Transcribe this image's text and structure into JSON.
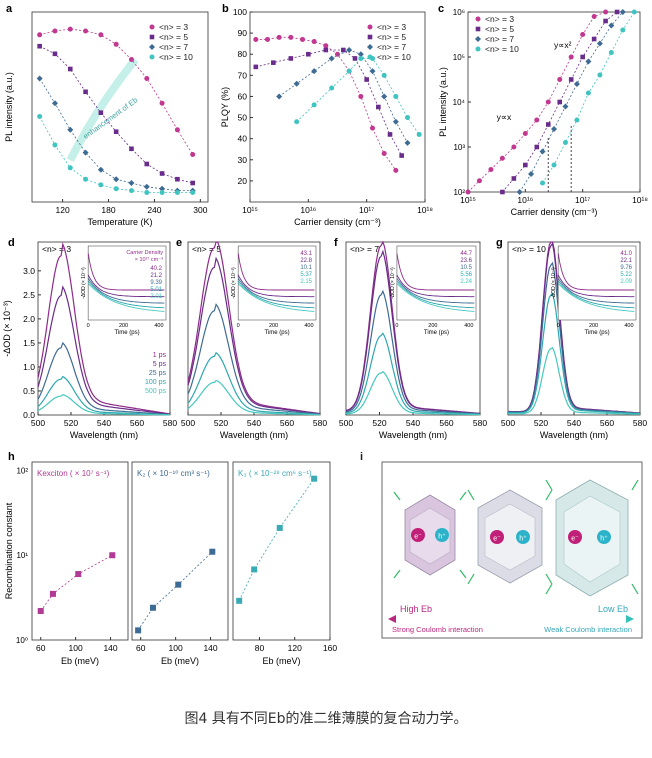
{
  "figure": {
    "caption": "图4 具有不同Eb的准二维薄膜的复合动力学。",
    "colors": {
      "n3": "#c2378f",
      "n5": "#6a2c8a",
      "n7": "#3e6b93",
      "n10": "#3fc4c0"
    }
  },
  "chart_data": [
    {
      "id": "a",
      "panel_label": "a",
      "type": "scatter",
      "xlabel": "Temperature (K)",
      "ylabel": "PL intensity (a.u.)",
      "xlim": [
        80,
        310
      ],
      "ylim": [
        0,
        1
      ],
      "xticks": [
        "120",
        "180",
        "240",
        "300"
      ],
      "legend": [
        "<n> = 3",
        "<n> = 5",
        "<n> = 7",
        "<n> = 10"
      ],
      "annotation": "enhancement of Eb",
      "series": [
        {
          "name": "<n> = 3",
          "x": [
            90,
            110,
            130,
            150,
            170,
            190,
            210,
            230,
            250,
            270,
            290
          ],
          "values": [
            0.88,
            0.9,
            0.91,
            0.9,
            0.88,
            0.83,
            0.75,
            0.65,
            0.52,
            0.38,
            0.25
          ]
        },
        {
          "name": "<n> = 5",
          "x": [
            90,
            110,
            130,
            150,
            170,
            190,
            210,
            230,
            250,
            270,
            290
          ],
          "values": [
            0.82,
            0.78,
            0.7,
            0.58,
            0.47,
            0.37,
            0.28,
            0.2,
            0.15,
            0.12,
            0.1
          ]
        },
        {
          "name": "<n> = 7",
          "x": [
            90,
            110,
            130,
            150,
            170,
            190,
            210,
            230,
            250,
            270,
            290
          ],
          "values": [
            0.65,
            0.52,
            0.38,
            0.26,
            0.17,
            0.12,
            0.1,
            0.08,
            0.07,
            0.06,
            0.06
          ]
        },
        {
          "name": "<n> = 10",
          "x": [
            90,
            110,
            130,
            150,
            170,
            190,
            210,
            230,
            250,
            270,
            290
          ],
          "values": [
            0.45,
            0.3,
            0.18,
            0.12,
            0.09,
            0.07,
            0.06,
            0.05,
            0.05,
            0.05,
            0.05
          ]
        }
      ]
    },
    {
      "id": "b",
      "panel_label": "b",
      "type": "scatter",
      "xlabel": "Carrier density (cm⁻³)",
      "ylabel": "PLQY (%)",
      "xlim": [
        15,
        18
      ],
      "ylim": [
        10,
        100
      ],
      "xticks": [
        "10¹⁵",
        "10¹⁶",
        "10¹⁷",
        "10¹⁸"
      ],
      "yticks": [
        "20",
        "30",
        "40",
        "50",
        "60",
        "70",
        "80",
        "90",
        "100"
      ],
      "legend": [
        "<n> = 3",
        "<n> = 5",
        "<n> = 7",
        "<n> = 10"
      ],
      "series": [
        {
          "name": "<n> = 3",
          "x": [
            15.1,
            15.3,
            15.5,
            15.7,
            15.9,
            16.1,
            16.3,
            16.5,
            16.7,
            16.9,
            17.1,
            17.3,
            17.5
          ],
          "values": [
            87,
            87,
            88,
            88,
            87,
            86,
            84,
            80,
            72,
            60,
            45,
            33,
            25
          ]
        },
        {
          "name": "<n> = 5",
          "x": [
            15.1,
            15.4,
            15.7,
            16.0,
            16.3,
            16.6,
            16.8,
            17.0,
            17.2,
            17.4,
            17.6
          ],
          "values": [
            74,
            76,
            78,
            80,
            82,
            82,
            78,
            68,
            55,
            42,
            32
          ]
        },
        {
          "name": "<n> = 7",
          "x": [
            15.5,
            15.8,
            16.1,
            16.4,
            16.7,
            16.9,
            17.1,
            17.3,
            17.5,
            17.7
          ],
          "values": [
            60,
            66,
            72,
            78,
            82,
            80,
            72,
            60,
            48,
            38
          ]
        },
        {
          "name": "<n> = 10",
          "x": [
            15.8,
            16.1,
            16.4,
            16.7,
            16.9,
            17.1,
            17.3,
            17.5,
            17.7,
            17.9
          ],
          "values": [
            48,
            56,
            64,
            72,
            78,
            78,
            70,
            60,
            50,
            42
          ]
        }
      ]
    },
    {
      "id": "c",
      "panel_label": "c",
      "type": "scatter",
      "xlabel": "Carrier density (cm⁻³)",
      "ylabel": "PL intensity (a.u.)",
      "xlim": [
        15,
        18
      ],
      "ylim": [
        2,
        6
      ],
      "xticks": [
        "10¹⁵",
        "10¹⁶",
        "10¹⁷",
        "10¹⁸"
      ],
      "yticks": [
        "10²",
        "10³",
        "10⁴",
        "10⁵",
        "10⁶"
      ],
      "legend": [
        "<n> = 3",
        "<n> = 5",
        "<n> = 7",
        "<n> = 10"
      ],
      "annotations": [
        "y∝x",
        "y∝x²"
      ],
      "series": [
        {
          "name": "<n> = 3",
          "x": [
            15.0,
            15.2,
            15.4,
            15.6,
            15.8,
            16.0,
            16.2,
            16.4,
            16.6,
            16.8,
            17.0,
            17.2,
            17.4
          ],
          "values": [
            2.0,
            2.25,
            2.5,
            2.75,
            3.0,
            3.3,
            3.6,
            4.0,
            4.5,
            5.0,
            5.5,
            5.9,
            6.0
          ]
        },
        {
          "name": "<n> = 5",
          "x": [
            15.6,
            15.8,
            16.0,
            16.2,
            16.4,
            16.6,
            16.8,
            17.0,
            17.2,
            17.4,
            17.6
          ],
          "values": [
            2.0,
            2.3,
            2.6,
            3.0,
            3.5,
            4.0,
            4.5,
            5.0,
            5.4,
            5.8,
            6.0
          ]
        },
        {
          "name": "<n> = 7",
          "x": [
            15.9,
            16.1,
            16.3,
            16.5,
            16.7,
            16.9,
            17.1,
            17.3,
            17.5,
            17.7
          ],
          "values": [
            2.0,
            2.4,
            2.9,
            3.4,
            3.9,
            4.4,
            4.9,
            5.3,
            5.7,
            6.0
          ]
        },
        {
          "name": "<n> = 10",
          "x": [
            16.3,
            16.5,
            16.7,
            16.9,
            17.1,
            17.3,
            17.5,
            17.7,
            17.9
          ],
          "values": [
            2.2,
            2.6,
            3.1,
            3.6,
            4.2,
            4.6,
            5.1,
            5.6,
            6.0
          ]
        }
      ]
    },
    {
      "id": "d",
      "panel_label": "d",
      "type": "line",
      "n_label": "<n> = 3",
      "xlabel": "Wavelength (nm)",
      "ylabel": "-ΔOD (× 10⁻³)",
      "xlim": [
        500,
        580
      ],
      "ylim": [
        0,
        3.6
      ],
      "xticks": [
        "500",
        "520",
        "540",
        "560",
        "580"
      ],
      "yticks": [
        "0.0",
        "0.5",
        "1.0",
        "1.5",
        "2.0",
        "2.5",
        "3.0"
      ],
      "peak_nm": 514,
      "width_nm": 11,
      "tail": 0.12,
      "amplitudes": [
        3.2,
        2.4,
        1.35,
        0.72,
        0.38
      ],
      "delays": [
        "1 ps",
        "5 ps",
        "25 ps",
        "100 ps",
        "500 ps"
      ],
      "inset": {
        "title": "Carrier Density",
        "unit": "× 10¹⁷ cm⁻³",
        "densities": [
          "40.2",
          "21.2",
          "9.39",
          "5.01",
          "2.01"
        ],
        "xlabel": "Time (ps)",
        "ylabel": "-ΔOD (× 10⁻³)",
        "xticks": [
          "0",
          "200",
          "400"
        ]
      }
    },
    {
      "id": "e",
      "panel_label": "e",
      "type": "line",
      "n_label": "<n> = 5",
      "xlabel": "Wavelength (nm)",
      "ylabel": "",
      "xlim": [
        500,
        580
      ],
      "ylim": [
        0,
        4.1
      ],
      "xticks": [
        "500",
        "520",
        "540",
        "560",
        "580"
      ],
      "peak_nm": 516,
      "width_nm": 12,
      "tail": 0.1,
      "amplitudes": [
        3.85,
        3.4,
        2.4,
        1.35,
        0.75
      ],
      "inset": {
        "densities": [
          "43.1",
          "22.8",
          "10.1",
          "5.37",
          "2.15"
        ],
        "xlabel": "Time (ps)",
        "ylabel": "-ΔOD (× 10⁻³)",
        "xticks": [
          "0",
          "200",
          "400"
        ]
      }
    },
    {
      "id": "f",
      "panel_label": "f",
      "type": "line",
      "n_label": "<n> = 7",
      "xlabel": "Wavelength (nm)",
      "ylabel": "",
      "xlim": [
        500,
        580
      ],
      "ylim": [
        0,
        4.1
      ],
      "xticks": [
        "500",
        "520",
        "540",
        "560",
        "580"
      ],
      "peak_nm": 521,
      "width_nm": 9,
      "tail": 0.06,
      "amplitudes": [
        3.95,
        3.7,
        2.8,
        1.85,
        0.98
      ],
      "inset": {
        "densities": [
          "44.7",
          "23.6",
          "10.5",
          "5.56",
          "2.24"
        ],
        "xlabel": "Time (ps)",
        "ylabel": "-ΔOD (× 10⁻³)",
        "xticks": [
          "0",
          "200",
          "400"
        ]
      }
    },
    {
      "id": "g",
      "panel_label": "g",
      "type": "line",
      "n_label": "<n> = 10",
      "xlabel": "Wavelength (nm)",
      "ylabel": "",
      "xlim": [
        500,
        580
      ],
      "ylim": [
        0,
        4.1
      ],
      "xticks": [
        "500",
        "520",
        "540",
        "560",
        "580"
      ],
      "peak_nm": 526,
      "width_nm": 7,
      "tail": 0.05,
      "amplitudes": [
        4.05,
        3.95,
        3.5,
        2.8,
        1.55
      ],
      "inset": {
        "densities": [
          "41.0",
          "22.1",
          "9.76",
          "5.22",
          "2.09"
        ],
        "xlabel": "Time (ps)",
        "ylabel": "-ΔOD (× 10⁻³)",
        "xticks": [
          "0",
          "200",
          "400"
        ]
      }
    },
    {
      "id": "h",
      "panel_label": "h",
      "type": "scatter",
      "ylabel": "Recombination constant",
      "xlabel": "Eb (meV)",
      "ylim_log": [
        0,
        2.1
      ],
      "yticks": [
        "10⁰",
        "10¹",
        "10²"
      ],
      "xticks": [
        "60",
        "80",
        "100",
        "120",
        "140",
        "160"
      ],
      "subplots": [
        {
          "label": "Kexciton ( × 10⁷ s⁻¹)",
          "color": "#b03a94",
          "x": [
            60,
            74,
            103,
            142
          ],
          "values": [
            2.2,
            3.5,
            6.0,
            10.0
          ]
        },
        {
          "label": "K₂ ( × 10⁻¹⁰ cm³ s⁻¹)",
          "color": "#3e6b93",
          "x": [
            57,
            74,
            103,
            142
          ],
          "values": [
            1.3,
            2.4,
            4.5,
            11.0
          ]
        },
        {
          "label": "K₃ ( × 10⁻²⁸ cm⁶ s⁻¹)",
          "color": "#3aaab5",
          "x": [
            57,
            74,
            103,
            142
          ],
          "values": [
            2.9,
            6.8,
            21.0,
            80.0
          ]
        }
      ]
    }
  ],
  "panel_i": {
    "label": "i",
    "e_symbol": "e⁻",
    "h_symbol": "h⁺",
    "high_label": "High Eb",
    "low_label": "Low Eb",
    "strong_label": "Strong Coulomb interaction",
    "weak_label": "Weak Coulomb interaction"
  }
}
